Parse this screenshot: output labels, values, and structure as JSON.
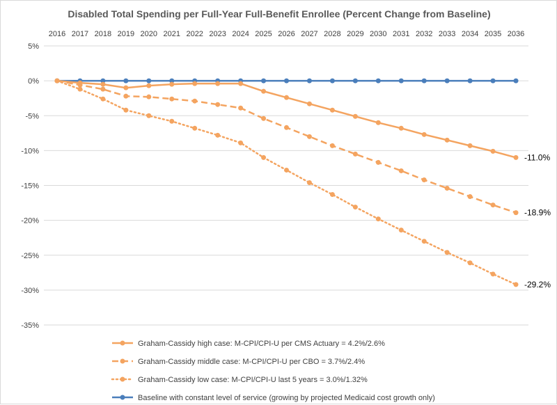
{
  "chart_data": {
    "type": "line",
    "title": "Disabled Total Spending per Full-Year Full-Benefit Enrollee (Percent Change from Baseline)",
    "x": [
      2016,
      2017,
      2018,
      2019,
      2020,
      2021,
      2022,
      2023,
      2024,
      2025,
      2026,
      2027,
      2028,
      2029,
      2030,
      2031,
      2032,
      2033,
      2034,
      2035,
      2036
    ],
    "x_axis_position": "top",
    "ylim": [
      -35,
      5
    ],
    "yticks": [
      5,
      0,
      -5,
      -10,
      -15,
      -20,
      -25,
      -30,
      -35
    ],
    "ytick_labels": [
      "5%",
      "0%",
      "-5%",
      "-10%",
      "-15%",
      "-20%",
      "-25%",
      "-30%",
      "-35%"
    ],
    "grid": "horizontal",
    "legend_position": "bottom",
    "series": [
      {
        "name": "Graham-Cassidy high case: M-CPI/CPI-U per CMS Actuary = 4.2%/2.6%",
        "style": "solid",
        "color": "#f4a460",
        "end_label": "-11.0%",
        "values": [
          0,
          -0.3,
          -0.5,
          -1.0,
          -0.7,
          -0.5,
          -0.4,
          -0.4,
          -0.4,
          -1.5,
          -2.4,
          -3.3,
          -4.2,
          -5.1,
          -6.0,
          -6.8,
          -7.7,
          -8.5,
          -9.3,
          -10.1,
          -11.0
        ]
      },
      {
        "name": "Graham-Cassidy middle case: M-CPI/CPI-U per CBO = 3.7%/2.4%",
        "style": "dashed",
        "color": "#f4a460",
        "end_label": "-18.9%",
        "values": [
          0,
          -0.6,
          -1.2,
          -2.2,
          -2.3,
          -2.6,
          -2.9,
          -3.4,
          -3.9,
          -5.4,
          -6.7,
          -8.0,
          -9.3,
          -10.5,
          -11.7,
          -12.9,
          -14.2,
          -15.4,
          -16.6,
          -17.8,
          -18.9
        ]
      },
      {
        "name": "Graham-Cassidy low case: M-CPI/CPI-U last 5 years = 3.0%/1.32%",
        "style": "dotted",
        "color": "#f4a460",
        "end_label": "-29.2%",
        "values": [
          0,
          -1.2,
          -2.6,
          -4.2,
          -5.0,
          -5.8,
          -6.8,
          -7.8,
          -8.9,
          -11.0,
          -12.8,
          -14.6,
          -16.3,
          -18.1,
          -19.8,
          -21.4,
          -23.0,
          -24.6,
          -26.1,
          -27.7,
          -29.2
        ]
      },
      {
        "name": "Baseline with constant level of service (growing by projected Medicaid cost growth only)",
        "style": "solid",
        "color": "#4a7ebb",
        "end_label": "",
        "values": [
          0,
          0,
          0,
          0,
          0,
          0,
          0,
          0,
          0,
          0,
          0,
          0,
          0,
          0,
          0,
          0,
          0,
          0,
          0,
          0,
          0
        ]
      }
    ]
  }
}
